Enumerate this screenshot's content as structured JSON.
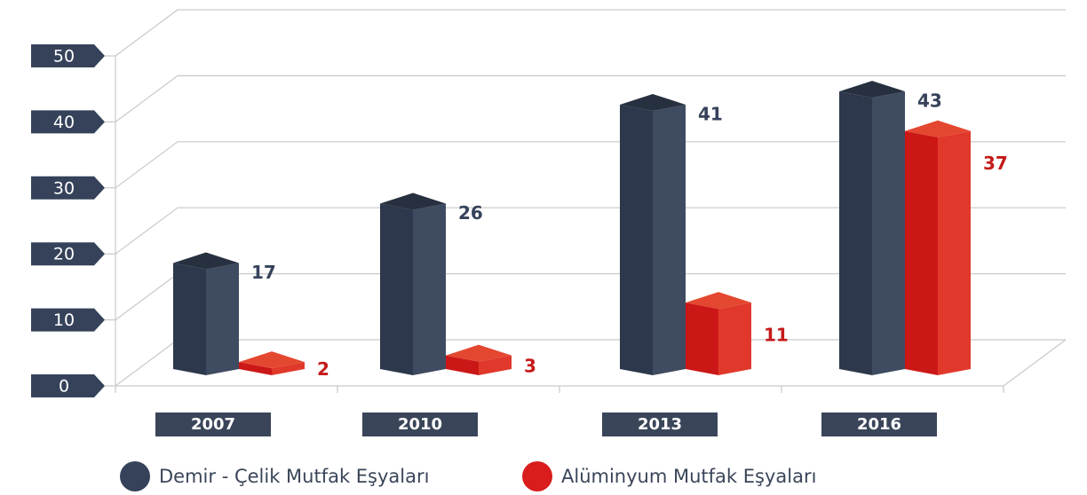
{
  "chart_data": {
    "type": "bar3d",
    "categories": [
      "2007",
      "2010",
      "2013",
      "2016"
    ],
    "series": [
      {
        "name": "Demir - Çelik Mutfak Eşyaları",
        "color": "#35425a",
        "values": [
          17,
          26,
          41,
          43
        ]
      },
      {
        "name": "Alüminyum Mutfak Eşyaları",
        "color": "#d91c1c",
        "values": [
          2,
          3,
          11,
          37
        ]
      }
    ],
    "ylim": [
      0,
      50
    ],
    "yticks": [
      0,
      10,
      20,
      30,
      40,
      50
    ],
    "grid": true,
    "legend": "bottom"
  }
}
